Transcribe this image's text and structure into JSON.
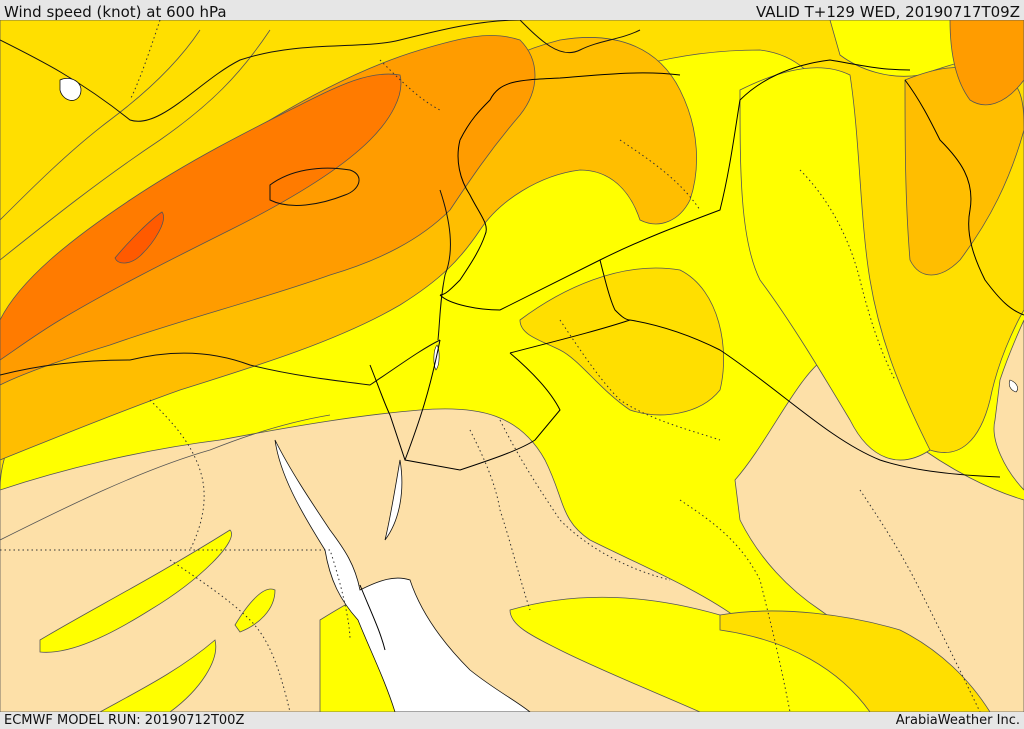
{
  "header": {
    "title": "Wind speed (knot) at 600 hPa",
    "valid": "VALID T+129 WED, 20190717T09Z"
  },
  "footer": {
    "model_run": "ECMWF MODEL RUN: 20190712T00Z",
    "credit": "ArabiaWeather Inc."
  },
  "colors": {
    "band_lowest": "#fde0a8",
    "band_1": "#ffff00",
    "band_2": "#ffdf00",
    "band_3": "#ffbe00",
    "band_4": "#ff9c00",
    "band_5": "#ff7b00",
    "band_6": "#ff5a00",
    "water": "#ffffff",
    "contour": "#555555",
    "border": "#000000"
  }
}
